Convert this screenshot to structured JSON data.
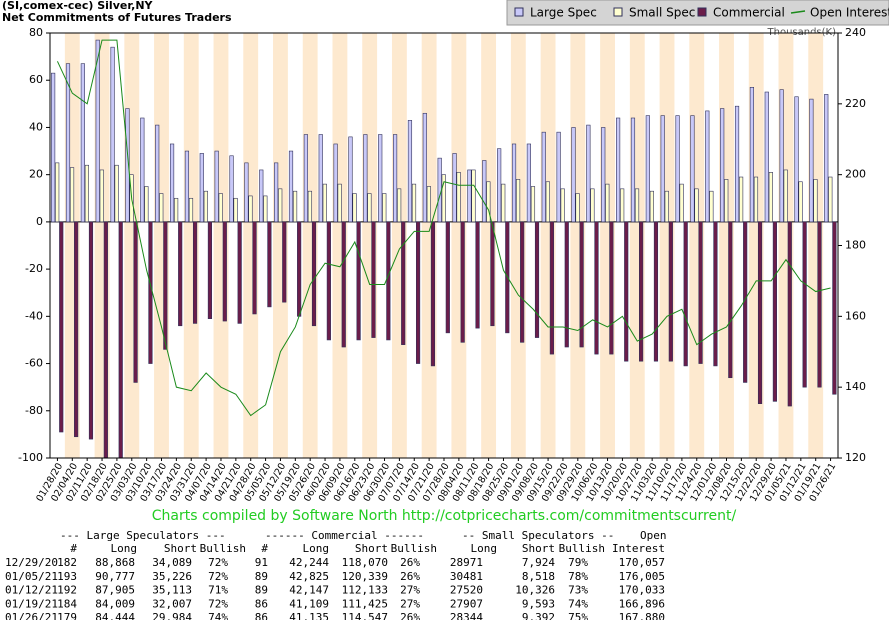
{
  "chart_data": {
    "type": "bar",
    "title": "(SI,comex-cec) Silver,NY",
    "subtitle": "Net Commitments of Futures Traders",
    "y2_label": "Thousands(K)",
    "categories": [
      "01/28/20",
      "02/04/20",
      "02/11/20",
      "02/18/20",
      "02/25/20",
      "03/03/20",
      "03/10/20",
      "03/17/20",
      "03/24/20",
      "03/31/20",
      "04/07/20",
      "04/14/20",
      "04/21/20",
      "04/28/20",
      "05/05/20",
      "05/12/20",
      "05/19/20",
      "05/26/20",
      "06/02/20",
      "06/09/20",
      "06/16/20",
      "06/23/20",
      "06/30/20",
      "07/07/20",
      "07/14/20",
      "07/21/20",
      "07/28/20",
      "08/04/20",
      "08/11/20",
      "08/18/20",
      "08/25/20",
      "09/01/20",
      "09/08/20",
      "09/15/20",
      "09/22/20",
      "09/29/20",
      "10/06/20",
      "10/13/20",
      "10/20/20",
      "10/27/20",
      "11/03/20",
      "11/10/20",
      "11/17/20",
      "11/24/20",
      "12/01/20",
      "12/08/20",
      "12/15/20",
      "12/22/20",
      "12/29/20",
      "01/05/21",
      "01/12/21",
      "01/19/21",
      "01/26/21"
    ],
    "series": [
      {
        "name": "Large Spec",
        "type": "bar",
        "color": "#c8c8f8",
        "values": [
          63,
          67,
          67,
          77,
          74,
          48,
          44,
          41,
          33,
          30,
          29,
          30,
          28,
          25,
          22,
          25,
          30,
          37,
          37,
          33,
          36,
          37,
          37,
          37,
          43,
          46,
          27,
          29,
          22,
          26,
          31,
          33,
          33,
          38,
          38,
          40,
          41,
          40,
          44,
          44,
          45,
          45,
          45,
          45,
          47,
          48,
          49,
          57,
          55,
          56,
          53,
          52,
          54
        ]
      },
      {
        "name": "Small Spec",
        "type": "bar",
        "color": "#ffffd0",
        "values": [
          25,
          23,
          24,
          22,
          24,
          20,
          15,
          12,
          10,
          10,
          13,
          12,
          10,
          11,
          11,
          14,
          13,
          13,
          16,
          16,
          12,
          12,
          12,
          14,
          16,
          15,
          20,
          21,
          22,
          17,
          16,
          18,
          15,
          17,
          14,
          12,
          14,
          16,
          14,
          14,
          13,
          13,
          16,
          14,
          13,
          18,
          19,
          19,
          21,
          22,
          17,
          18,
          19
        ]
      },
      {
        "name": "Commercial",
        "type": "bar",
        "color": "#6b1d4a",
        "values": [
          -89,
          -91,
          -92,
          -100,
          -100,
          -68,
          -60,
          -54,
          -44,
          -43,
          -41,
          -42,
          -43,
          -39,
          -36,
          -34,
          -40,
          -44,
          -50,
          -53,
          -50,
          -49,
          -50,
          -52,
          -60,
          -61,
          -47,
          -51,
          -45,
          -44,
          -47,
          -51,
          -49,
          -56,
          -53,
          -53,
          -56,
          -56,
          -59,
          -59,
          -59,
          -59,
          -61,
          -60,
          -61,
          -66,
          -68,
          -77,
          -76,
          -78,
          -70,
          -70,
          -73
        ]
      },
      {
        "name": "Open Interest",
        "type": "line",
        "axis": "y2",
        "color": "#1a8a1a",
        "values": [
          232,
          223,
          220,
          238,
          238,
          193,
          173,
          157,
          140,
          139,
          144,
          140,
          138,
          132,
          135,
          150,
          157,
          169,
          175,
          174,
          181,
          169,
          169,
          179,
          184,
          184,
          198,
          197,
          197,
          190,
          173,
          166,
          162,
          157,
          157,
          156,
          159,
          157,
          160,
          153,
          155,
          160,
          162,
          152,
          155,
          157,
          163,
          170,
          170,
          176,
          170,
          167,
          168
        ]
      }
    ],
    "ylim": [
      -100,
      80
    ],
    "yticks": [
      -100,
      -80,
      -60,
      -40,
      -20,
      0,
      20,
      40,
      60,
      80
    ],
    "y2lim": [
      120,
      240
    ],
    "y2ticks": [
      120,
      140,
      160,
      180,
      200,
      220,
      240
    ],
    "grid": false,
    "legend": "top-right"
  },
  "footer": "Charts compiled by Software North  http://cotpricecharts.com/commitmentscurrent/",
  "table": {
    "groups": [
      "--- Large Speculators ---",
      "------ Commercial ------",
      "-- Small Speculators --",
      "Open"
    ],
    "columns": [
      "#",
      "Long",
      "Short",
      "Bullish",
      "#",
      "Long",
      "Short",
      "Bullish",
      "Long",
      "Short",
      "Bullish",
      "Interest"
    ],
    "rows": [
      [
        "12/29/20",
        "182",
        "88,868",
        "34,089",
        "72%",
        "91",
        "42,244",
        "118,070",
        "26%",
        "28971",
        "7,924",
        "79%",
        "170,057"
      ],
      [
        "01/05/21",
        "193",
        "90,777",
        "35,226",
        "72%",
        "89",
        "42,825",
        "120,339",
        "26%",
        "30481",
        "8,518",
        "78%",
        "176,005"
      ],
      [
        "01/12/21",
        "192",
        "87,905",
        "35,113",
        "71%",
        "89",
        "42,147",
        "112,133",
        "27%",
        "27520",
        "10,326",
        "73%",
        "170,033"
      ],
      [
        "01/19/21",
        "184",
        "84,009",
        "32,007",
        "72%",
        "86",
        "41,109",
        "111,425",
        "27%",
        "27907",
        "9,593",
        "74%",
        "166,896"
      ],
      [
        "01/26/21",
        "179",
        "84,444",
        "29,984",
        "74%",
        "86",
        "41,135",
        "114,547",
        "26%",
        "28344",
        "9,392",
        "75%",
        "167,880"
      ]
    ]
  }
}
